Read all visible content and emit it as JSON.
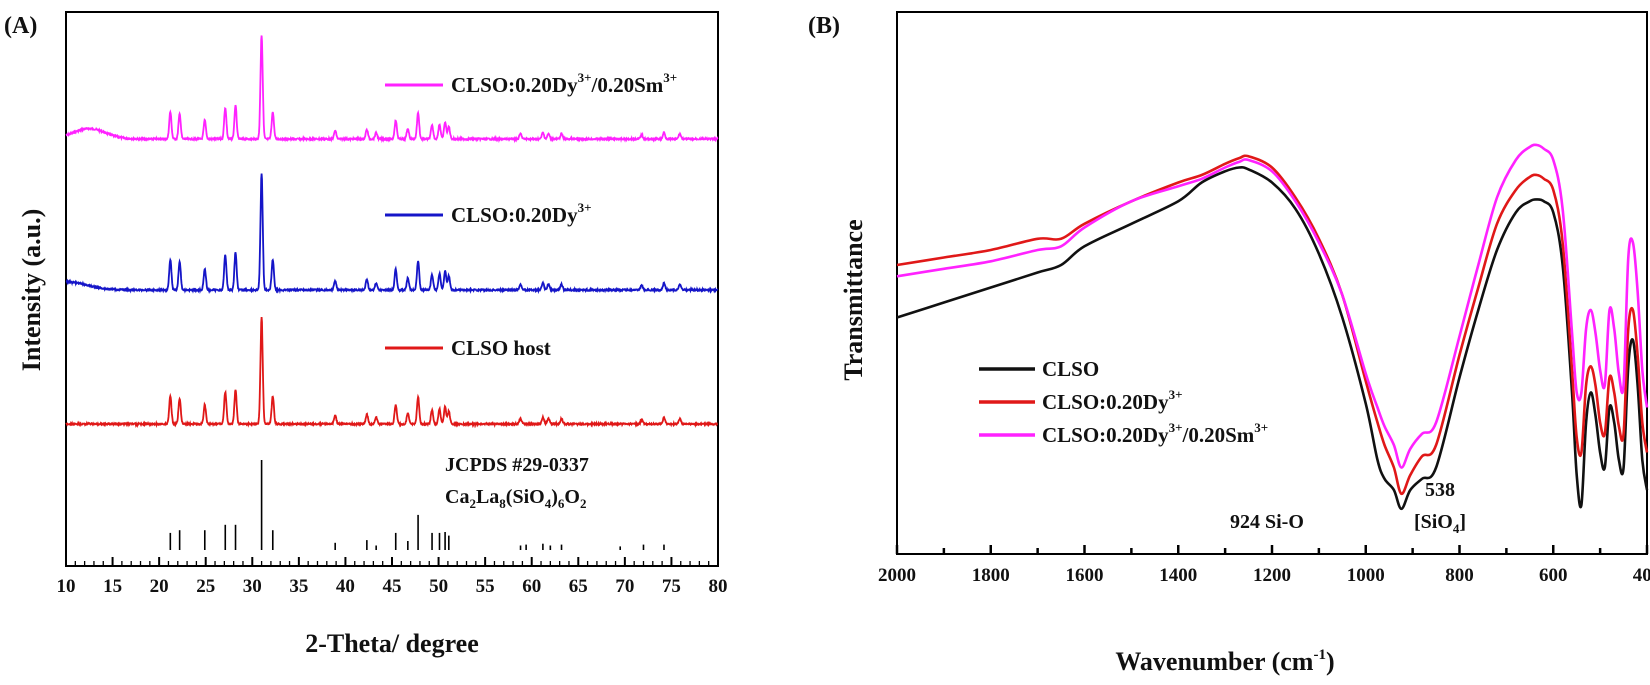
{
  "chart_data": [
    {
      "panel_label": "(A)",
      "type": "line",
      "xlabel": "2-Theta/ degree",
      "ylabel": "Intensity (a.u.)",
      "xlim": [
        10,
        80
      ],
      "xticks": [
        "10",
        "15",
        "20",
        "25",
        "30",
        "35",
        "40",
        "45",
        "50",
        "55",
        "60",
        "65",
        "70",
        "75",
        "80"
      ],
      "grid": false,
      "legend_position": "inline",
      "series": [
        {
          "name": "CLSO:0.20Dy",
          "sup": "3+",
          "name_tail": "/0.20Sm",
          "sup2": "3+",
          "color": "#ff22ff",
          "offset": 3
        },
        {
          "name": "CLSO:0.20Dy",
          "sup": "3+",
          "name_tail": "",
          "sup2": "",
          "color": "#1515c8",
          "offset": 2
        },
        {
          "name": "CLSO host",
          "sup": "",
          "name_tail": "",
          "sup2": "",
          "color": "#e01818",
          "offset": 1
        }
      ],
      "peaks": [
        {
          "x": 21.2,
          "h": 0.26
        },
        {
          "x": 22.2,
          "h": 0.24
        },
        {
          "x": 24.9,
          "h": 0.18
        },
        {
          "x": 27.1,
          "h": 0.3
        },
        {
          "x": 28.2,
          "h": 0.32
        },
        {
          "x": 31.0,
          "h": 1.0
        },
        {
          "x": 32.2,
          "h": 0.26
        },
        {
          "x": 38.9,
          "h": 0.08
        },
        {
          "x": 42.3,
          "h": 0.09
        },
        {
          "x": 43.3,
          "h": 0.06
        },
        {
          "x": 45.4,
          "h": 0.18
        },
        {
          "x": 46.7,
          "h": 0.1
        },
        {
          "x": 47.8,
          "h": 0.25
        },
        {
          "x": 49.3,
          "h": 0.13
        },
        {
          "x": 50.1,
          "h": 0.14
        },
        {
          "x": 50.7,
          "h": 0.16
        },
        {
          "x": 51.1,
          "h": 0.12
        },
        {
          "x": 58.8,
          "h": 0.05
        },
        {
          "x": 61.2,
          "h": 0.06
        },
        {
          "x": 61.8,
          "h": 0.05
        },
        {
          "x": 63.2,
          "h": 0.05
        },
        {
          "x": 71.8,
          "h": 0.04
        },
        {
          "x": 74.2,
          "h": 0.06
        },
        {
          "x": 75.9,
          "h": 0.05
        }
      ],
      "reference": {
        "label_line1": "JCPDS #29-0337",
        "label_line2_parts": [
          "Ca",
          "2",
          "La",
          "8",
          "(SiO",
          "4",
          ")",
          "6",
          "O",
          "2"
        ],
        "sticks": [
          {
            "x": 21.2,
            "h": 0.19
          },
          {
            "x": 22.2,
            "h": 0.22
          },
          {
            "x": 24.9,
            "h": 0.22
          },
          {
            "x": 27.1,
            "h": 0.28
          },
          {
            "x": 28.2,
            "h": 0.28
          },
          {
            "x": 31.0,
            "h": 1.0
          },
          {
            "x": 32.2,
            "h": 0.22
          },
          {
            "x": 38.9,
            "h": 0.08
          },
          {
            "x": 42.3,
            "h": 0.11
          },
          {
            "x": 43.3,
            "h": 0.05
          },
          {
            "x": 45.4,
            "h": 0.19
          },
          {
            "x": 46.7,
            "h": 0.1
          },
          {
            "x": 47.8,
            "h": 0.39
          },
          {
            "x": 49.3,
            "h": 0.19
          },
          {
            "x": 50.1,
            "h": 0.19
          },
          {
            "x": 50.7,
            "h": 0.2
          },
          {
            "x": 51.1,
            "h": 0.16
          },
          {
            "x": 58.8,
            "h": 0.05
          },
          {
            "x": 59.4,
            "h": 0.06
          },
          {
            "x": 61.2,
            "h": 0.07
          },
          {
            "x": 62.0,
            "h": 0.05
          },
          {
            "x": 63.2,
            "h": 0.06
          },
          {
            "x": 69.5,
            "h": 0.04
          },
          {
            "x": 72.0,
            "h": 0.06
          },
          {
            "x": 74.2,
            "h": 0.06
          }
        ]
      }
    },
    {
      "panel_label": "(B)",
      "type": "line",
      "xlabel_main": "Wavenumber (cm",
      "xlabel_sup": "-1",
      "xlabel_tail": ")",
      "ylabel": "Transmittance",
      "xlim": [
        2000,
        400
      ],
      "xticks": [
        "2000",
        "1800",
        "1600",
        "1400",
        "1200",
        "1000",
        "800",
        "600",
        "400"
      ],
      "grid": false,
      "legend_position": "bottom-left",
      "x": [
        2000,
        1900,
        1800,
        1700,
        1650,
        1600,
        1500,
        1400,
        1350,
        1300,
        1270,
        1250,
        1200,
        1150,
        1100,
        1050,
        1000,
        975,
        960,
        940,
        924,
        905,
        880,
        850,
        800,
        760,
        720,
        680,
        650,
        635,
        620,
        600,
        580,
        560,
        550,
        540,
        530,
        520,
        510,
        500,
        490,
        480,
        470,
        460,
        450,
        440,
        430,
        420,
        410,
        400
      ],
      "series": [
        {
          "name": "CLSO",
          "sup": "",
          "name_tail": "",
          "sup2": "",
          "color": "#111111",
          "y": [
            0.42,
            0.38,
            0.34,
            0.3,
            0.28,
            0.23,
            0.17,
            0.11,
            0.06,
            0.03,
            0.02,
            0.025,
            0.06,
            0.13,
            0.25,
            0.42,
            0.65,
            0.8,
            0.85,
            0.88,
            0.93,
            0.88,
            0.85,
            0.82,
            0.58,
            0.4,
            0.24,
            0.14,
            0.11,
            0.105,
            0.11,
            0.14,
            0.28,
            0.62,
            0.84,
            0.92,
            0.7,
            0.62,
            0.68,
            0.78,
            0.82,
            0.66,
            0.7,
            0.8,
            0.82,
            0.55,
            0.48,
            0.6,
            0.8,
            0.88
          ]
        },
        {
          "name": "CLSO:0.20Dy",
          "sup": "3+",
          "name_tail": "",
          "sup2": "",
          "color": "#e01818",
          "y": [
            0.28,
            0.26,
            0.24,
            0.21,
            0.21,
            0.17,
            0.11,
            0.06,
            0.04,
            0.01,
            -0.005,
            -0.01,
            0.02,
            0.1,
            0.21,
            0.36,
            0.59,
            0.7,
            0.76,
            0.82,
            0.89,
            0.84,
            0.79,
            0.76,
            0.52,
            0.34,
            0.17,
            0.08,
            0.045,
            0.04,
            0.05,
            0.08,
            0.22,
            0.56,
            0.74,
            0.78,
            0.6,
            0.55,
            0.6,
            0.7,
            0.73,
            0.58,
            0.62,
            0.71,
            0.73,
            0.45,
            0.4,
            0.52,
            0.7,
            0.78
          ]
        },
        {
          "name": "CLSO:0.20Dy",
          "sup": "3+",
          "name_tail": "/0.20Sm",
          "sup2": "3+",
          "color": "#ff22ff",
          "y": [
            0.31,
            0.29,
            0.27,
            0.24,
            0.23,
            0.18,
            0.11,
            0.07,
            0.05,
            0.02,
            0.005,
            0.0,
            0.03,
            0.11,
            0.22,
            0.36,
            0.57,
            0.66,
            0.71,
            0.76,
            0.82,
            0.77,
            0.73,
            0.7,
            0.47,
            0.28,
            0.1,
            0.0,
            -0.035,
            -0.04,
            -0.03,
            0.0,
            0.13,
            0.46,
            0.62,
            0.62,
            0.45,
            0.4,
            0.46,
            0.56,
            0.6,
            0.4,
            0.45,
            0.57,
            0.6,
            0.26,
            0.22,
            0.35,
            0.56,
            0.66
          ]
        }
      ],
      "annotations": [
        {
          "text": "924 Si-O",
          "line2_parts": []
        },
        {
          "text": "538",
          "line2_parts": [
            "[SiO",
            "4",
            "]"
          ]
        }
      ]
    }
  ]
}
